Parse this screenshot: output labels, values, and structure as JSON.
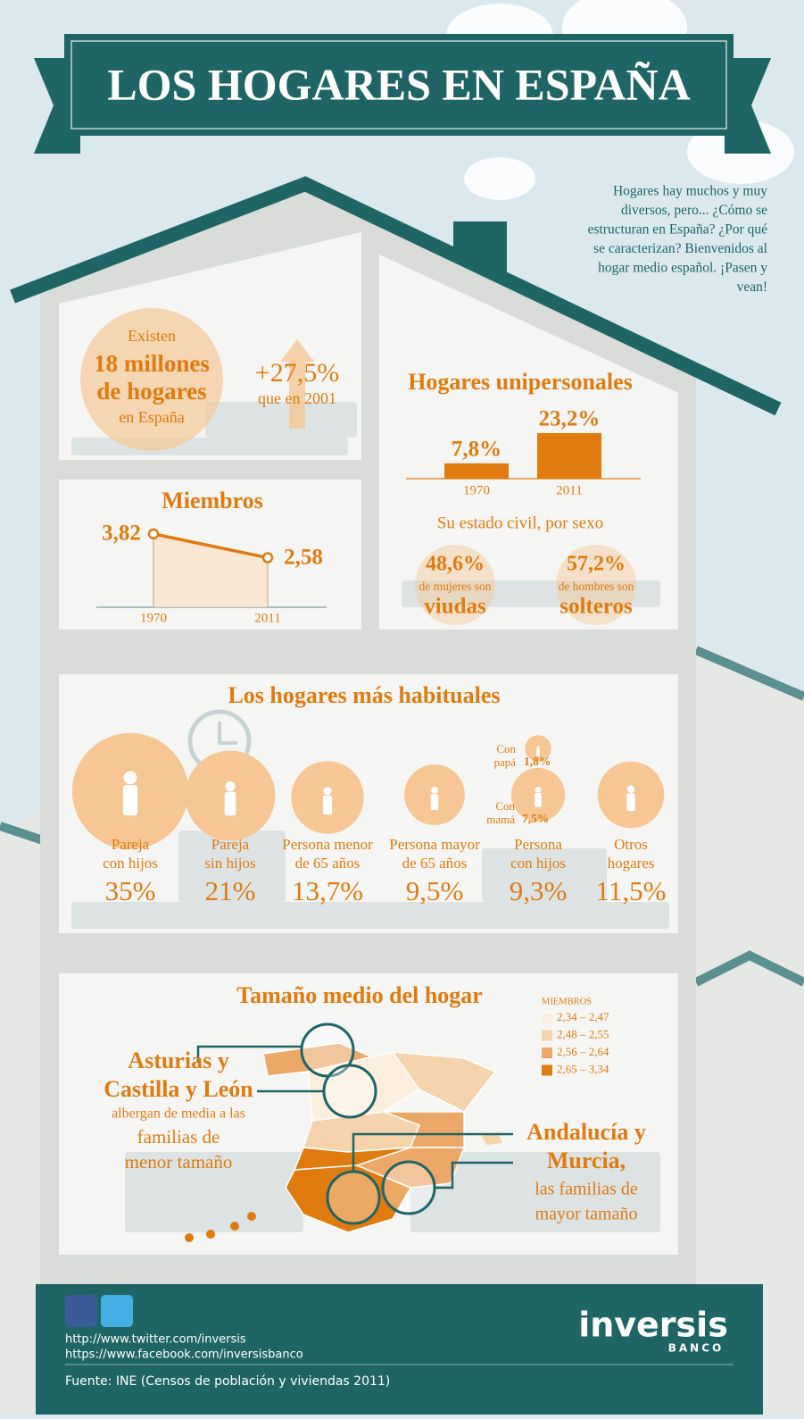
{
  "header": {
    "title": "LOS HOGARES EN ESPAÑA",
    "intro_lines": [
      "Hogares hay muchos y muy",
      "diversos, pero... ¿Cómo se",
      "estructuran en España? ¿Por qué",
      "se caracterizan? Bienvenidos al",
      "hogar medio español. ¡Pasen y",
      "vean!"
    ]
  },
  "total": {
    "pre": "Existen",
    "value": "18 millones",
    "line2": "de hogares",
    "post": "en España",
    "growth": "+27,5%",
    "growth_note": "que en 2001"
  },
  "members": {
    "type": "line",
    "title": "Miembros",
    "x": [
      "1970",
      "2011"
    ],
    "values": [
      3.82,
      2.58
    ],
    "value_labels": [
      "3,82",
      "2,58"
    ],
    "color": "#e07b10"
  },
  "single": {
    "type": "bar",
    "title": "Hogares unipersonales",
    "categories": [
      "1970",
      "2011"
    ],
    "values": [
      7.8,
      23.2
    ],
    "value_labels": [
      "7,8%",
      "23,2%"
    ],
    "color": "#e07b10"
  },
  "civil": {
    "title": "Su estado civil, por sexo",
    "items": [
      {
        "value": "48,6%",
        "note": "de mujeres son",
        "label": "viudas"
      },
      {
        "value": "57,2%",
        "note": "de hombres son",
        "label": "solteros"
      }
    ]
  },
  "common": {
    "title": "Los hogares más habituales",
    "items": [
      {
        "label_lines": [
          "Pareja",
          "con hijos"
        ],
        "value": 35,
        "value_label": "35%"
      },
      {
        "label_lines": [
          "Pareja",
          "sin hijos"
        ],
        "value": 21,
        "value_label": "21%"
      },
      {
        "label_lines": [
          "Persona menor",
          "de 65 años"
        ],
        "value": 13.7,
        "value_label": "13,7%"
      },
      {
        "label_lines": [
          "Persona mayor",
          "de 65 años"
        ],
        "value": 9.5,
        "value_label": "9,5%"
      },
      {
        "label_lines": [
          "Persona",
          "con hijos"
        ],
        "value": 9.3,
        "value_label": "9,3%",
        "parts": [
          {
            "label_lines": [
              "Con",
              "papá"
            ],
            "value": 1.8,
            "value_label": "1,8%"
          },
          {
            "label_lines": [
              "Con",
              "mamá"
            ],
            "value": 7.5,
            "value_label": "7,5%"
          }
        ]
      },
      {
        "label_lines": [
          "Otros",
          "hogares"
        ],
        "value": 11.5,
        "value_label": "11,5%"
      }
    ]
  },
  "size": {
    "title": "Tamaño medio del hogar",
    "legend_title": "MIEMBROS",
    "legend": [
      {
        "label": "2,34 – 2,47",
        "color": "#fbeedd"
      },
      {
        "label": "2,48 – 2,55",
        "color": "#f5d3ac"
      },
      {
        "label": "2,56 – 2,64",
        "color": "#eca868"
      },
      {
        "label": "2,65 – 3,34",
        "color": "#e07b10"
      }
    ],
    "low_lines": [
      "Asturias y",
      "Castilla y León",
      "albergan de media a las",
      "familias de",
      "menor tamaño"
    ],
    "high_lines": [
      "Andalucía y",
      "Murcia,",
      "las familias de",
      "mayor tamaño"
    ]
  },
  "footer": {
    "twitter": "http://www.twitter.com/inversis",
    "facebook": "https://www.facebook.com/inversisbanco",
    "brand": "inversis",
    "brand_sub": "BANCO",
    "source": "Fuente: INE (Censos de población y viviendas 2011)"
  }
}
